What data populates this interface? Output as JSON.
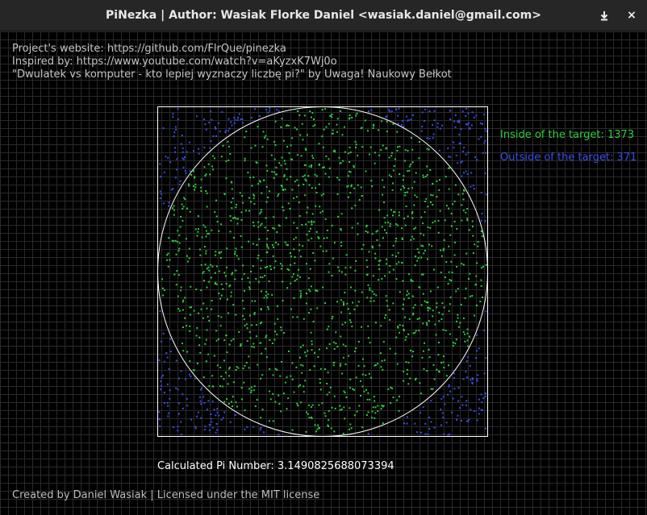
{
  "window": {
    "title": "PiNezka | Author: Wasiak Florke Daniel <wasiak.daniel@gmail.com>",
    "minimize_icon": "download-arrow-icon",
    "close_glyph": "×",
    "close_icon": "close-icon"
  },
  "info": {
    "website": "Project's website: https://github.com/FlrQue/pinezka",
    "inspired": "Inspired by: https://www.youtube.com/watch?v=aKyzxK7Wj0o",
    "video_title": "\"Dwulatek vs komputer - kto lepiej wyznaczy liczbę pi?\" by Uwaga! Naukowy Bełkot"
  },
  "stats": {
    "inside_label": "Inside of the target: 1373",
    "outside_label": "Outside of the target: 371",
    "inside_count": 1373,
    "outside_count": 371,
    "inside_color": "#2ecc40",
    "outside_color": "#3b4fe6"
  },
  "result": {
    "pi_label": "Calculated Pi Number: 3.1490825688073394"
  },
  "footer": {
    "text": "Created by Daniel Wasiak | Licensed under the MIT license"
  },
  "colors": {
    "background": "#000000",
    "grid": "#2a2a2a",
    "target_outline": "#ffffff",
    "titlebar": "#262626"
  }
}
